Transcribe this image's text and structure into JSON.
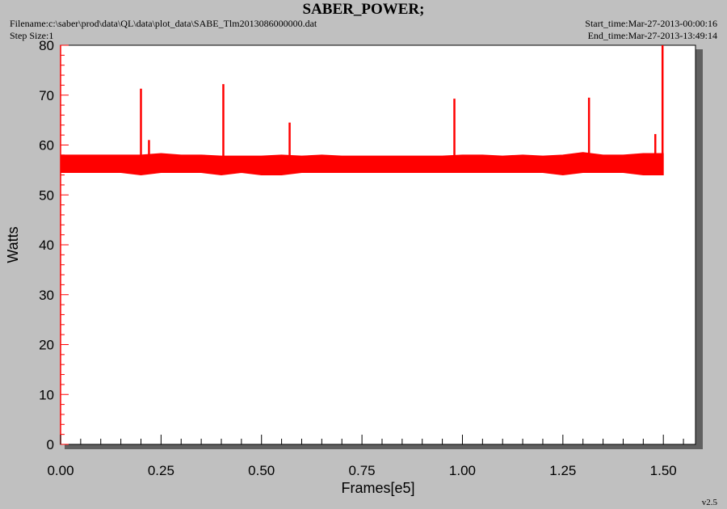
{
  "header": {
    "title": "SABER_POWER;",
    "filename": "Filename:c:\\saber\\prod\\data\\QL\\data\\plot_data\\SABE_Tlm2013086000000.dat",
    "step_size": "Step Size:1",
    "start_time": "Start_time:Mar-27-2013-00:00:16",
    "end_time": "End_time:Mar-27-2013-13:49:14"
  },
  "footer": {
    "version": "v2.5"
  },
  "chart_data": {
    "type": "line",
    "title": "SABER_POWER;",
    "xlabel": "Frames[e5]",
    "ylabel": "Watts",
    "xlim": [
      0,
      1.58
    ],
    "ylim": [
      0,
      80
    ],
    "xticks": [
      0.0,
      0.25,
      0.5,
      0.75,
      1.0,
      1.25,
      1.5
    ],
    "xtick_labels": [
      "0.00",
      "0.25",
      "0.50",
      "0.75",
      "1.00",
      "1.25",
      "1.50"
    ],
    "yticks": [
      0,
      10,
      20,
      30,
      40,
      50,
      60,
      70,
      80
    ],
    "ytick_labels": [
      "0",
      "10",
      "20",
      "30",
      "40",
      "50",
      "60",
      "70",
      "80"
    ],
    "grid": false,
    "series_color": "#ff0000",
    "series": [
      {
        "band_x": [
          0.0,
          0.05,
          0.1,
          0.15,
          0.2,
          0.25,
          0.3,
          0.35,
          0.4,
          0.45,
          0.5,
          0.55,
          0.6,
          0.65,
          0.7,
          0.75,
          0.8,
          0.85,
          0.9,
          0.95,
          1.0,
          1.05,
          1.1,
          1.15,
          1.2,
          1.25,
          1.3,
          1.35,
          1.4,
          1.45,
          1.5
        ],
        "band_low": [
          54.5,
          54.5,
          54.5,
          54.5,
          54.0,
          54.5,
          54.5,
          54.5,
          54.0,
          54.5,
          54.0,
          54.0,
          54.5,
          54.5,
          54.5,
          54.5,
          54.5,
          54.5,
          54.5,
          54.5,
          54.5,
          54.5,
          54.5,
          54.5,
          54.5,
          54.0,
          54.5,
          54.5,
          54.5,
          54.0,
          54.0
        ],
        "band_high": [
          58.0,
          58.0,
          58.0,
          58.0,
          58.0,
          58.3,
          58.0,
          58.0,
          57.8,
          57.8,
          57.8,
          58.0,
          57.8,
          58.0,
          57.8,
          57.8,
          57.8,
          57.8,
          57.8,
          57.8,
          58.0,
          58.0,
          57.8,
          58.0,
          57.8,
          58.0,
          58.5,
          58.0,
          58.0,
          58.3,
          58.3
        ],
        "spikes_x": [
          0.2,
          0.22,
          0.405,
          0.57,
          0.98,
          1.315,
          1.48,
          1.498
        ],
        "spikes_y": [
          71.3,
          61.0,
          72.2,
          64.5,
          69.3,
          69.5,
          62.2,
          80.0
        ]
      }
    ]
  }
}
